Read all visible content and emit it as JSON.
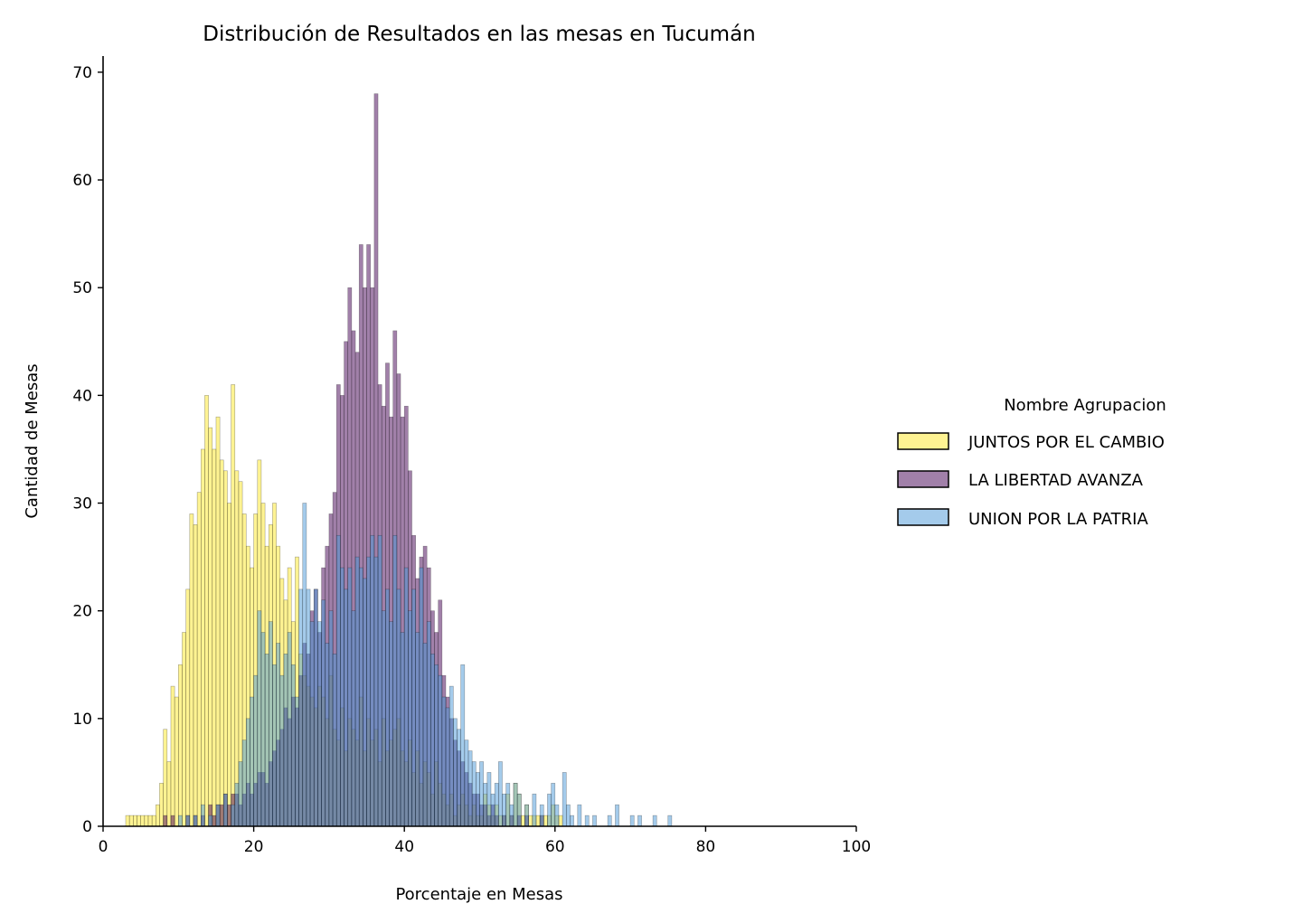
{
  "chart_data": {
    "type": "histogram",
    "title": "Distribución de Resultados en las mesas en Tucumán",
    "xlabel": "Porcentaje en Mesas",
    "ylabel": "Cantidad de Mesas",
    "xlim": [
      0,
      100
    ],
    "ylim": [
      0,
      71.5
    ],
    "xticks": [
      "0",
      "20",
      "40",
      "60",
      "80",
      "100"
    ],
    "yticks": [
      "0",
      "10",
      "20",
      "30",
      "40",
      "50",
      "60",
      "70"
    ],
    "grid": false,
    "legend": {
      "title": "Nombre Agrupacion",
      "position": "center-right"
    },
    "bin_width": 0.5,
    "series": [
      {
        "name": "JUNTOS POR EL CAMBIO",
        "color": "#fde725",
        "counts": [
          [
            3,
            1
          ],
          [
            3.5,
            1
          ],
          [
            4,
            1
          ],
          [
            4.5,
            1
          ],
          [
            5,
            1
          ],
          [
            5.5,
            1
          ],
          [
            6,
            1
          ],
          [
            6.5,
            1
          ],
          [
            7,
            2
          ],
          [
            7.5,
            4
          ],
          [
            8,
            9
          ],
          [
            8.5,
            6
          ],
          [
            9,
            13
          ],
          [
            9.5,
            12
          ],
          [
            10,
            15
          ],
          [
            10.5,
            18
          ],
          [
            11,
            22
          ],
          [
            11.5,
            29
          ],
          [
            12,
            28
          ],
          [
            12.5,
            31
          ],
          [
            13,
            35
          ],
          [
            13.5,
            40
          ],
          [
            14,
            37
          ],
          [
            14.5,
            35
          ],
          [
            15,
            38
          ],
          [
            15.5,
            34
          ],
          [
            16,
            33
          ],
          [
            16.5,
            30
          ],
          [
            17,
            41
          ],
          [
            17.5,
            33
          ],
          [
            18,
            32
          ],
          [
            18.5,
            29
          ],
          [
            19,
            26
          ],
          [
            19.5,
            24
          ],
          [
            20,
            29
          ],
          [
            20.5,
            34
          ],
          [
            21,
            30
          ],
          [
            21.5,
            26
          ],
          [
            22,
            28
          ],
          [
            22.5,
            30
          ],
          [
            23,
            26
          ],
          [
            23.5,
            23
          ],
          [
            24,
            21
          ],
          [
            24.5,
            24
          ],
          [
            25,
            19
          ],
          [
            25.5,
            25
          ],
          [
            26,
            16
          ],
          [
            26.5,
            14
          ],
          [
            27,
            13
          ],
          [
            27.5,
            12
          ],
          [
            28,
            11
          ],
          [
            28.5,
            13
          ],
          [
            29,
            12
          ],
          [
            29.5,
            10
          ],
          [
            30,
            14
          ],
          [
            30.5,
            9
          ],
          [
            31,
            8
          ],
          [
            31.5,
            11
          ],
          [
            32,
            7
          ],
          [
            32.5,
            10
          ],
          [
            33,
            9
          ],
          [
            33.5,
            8
          ],
          [
            34,
            12
          ],
          [
            34.5,
            7
          ],
          [
            35,
            10
          ],
          [
            35.5,
            8
          ],
          [
            36,
            9
          ],
          [
            36.5,
            6
          ],
          [
            37,
            10
          ],
          [
            37.5,
            7
          ],
          [
            38,
            8
          ],
          [
            38.5,
            9
          ],
          [
            39,
            10
          ],
          [
            39.5,
            7
          ],
          [
            40,
            6
          ],
          [
            40.5,
            8
          ],
          [
            41,
            5
          ],
          [
            41.5,
            7
          ],
          [
            42,
            4
          ],
          [
            42.5,
            6
          ],
          [
            43,
            5
          ],
          [
            43.5,
            3
          ],
          [
            44,
            6
          ],
          [
            44.5,
            4
          ],
          [
            45,
            3
          ],
          [
            45.5,
            2
          ],
          [
            46,
            3
          ],
          [
            46.5,
            1
          ],
          [
            47,
            2
          ],
          [
            47.5,
            3
          ],
          [
            48,
            2
          ],
          [
            48.5,
            1
          ],
          [
            49,
            2
          ],
          [
            49.5,
            1
          ],
          [
            50,
            1
          ],
          [
            50.5,
            3
          ],
          [
            51,
            2
          ],
          [
            51.5,
            1
          ],
          [
            52,
            2
          ],
          [
            52.5,
            1
          ],
          [
            53,
            1
          ],
          [
            53.5,
            3
          ],
          [
            54,
            1
          ],
          [
            54.5,
            4
          ],
          [
            55,
            3
          ],
          [
            55.5,
            1
          ],
          [
            56,
            2
          ],
          [
            56.5,
            1
          ],
          [
            57,
            1
          ],
          [
            57.5,
            1
          ],
          [
            58,
            1
          ],
          [
            58.5,
            1
          ],
          [
            59,
            1
          ],
          [
            59.5,
            2
          ],
          [
            60,
            1
          ],
          [
            60.5,
            1
          ]
        ]
      },
      {
        "name": "LA LIBERTAD AVANZA",
        "color": "#440154",
        "counts": [
          [
            8,
            1
          ],
          [
            9,
            1
          ],
          [
            11,
            1
          ],
          [
            12,
            1
          ],
          [
            13,
            1
          ],
          [
            14,
            2
          ],
          [
            14.5,
            1
          ],
          [
            15,
            2
          ],
          [
            15.5,
            2
          ],
          [
            16,
            3
          ],
          [
            16.5,
            2
          ],
          [
            17,
            3
          ],
          [
            17.5,
            3
          ],
          [
            18,
            2
          ],
          [
            18.5,
            3
          ],
          [
            19,
            4
          ],
          [
            19.5,
            3
          ],
          [
            20,
            4
          ],
          [
            20.5,
            5
          ],
          [
            21,
            5
          ],
          [
            21.5,
            4
          ],
          [
            22,
            6
          ],
          [
            22.5,
            7
          ],
          [
            23,
            8
          ],
          [
            23.5,
            9
          ],
          [
            24,
            11
          ],
          [
            24.5,
            10
          ],
          [
            25,
            12
          ],
          [
            25.5,
            11
          ],
          [
            26,
            14
          ],
          [
            26.5,
            17
          ],
          [
            27,
            16
          ],
          [
            27.5,
            20
          ],
          [
            28,
            22
          ],
          [
            28.5,
            18
          ],
          [
            29,
            24
          ],
          [
            29.5,
            26
          ],
          [
            30,
            29
          ],
          [
            30.5,
            31
          ],
          [
            31,
            41
          ],
          [
            31.5,
            40
          ],
          [
            32,
            45
          ],
          [
            32.5,
            50
          ],
          [
            33,
            46
          ],
          [
            33.5,
            44
          ],
          [
            34,
            54
          ],
          [
            34.5,
            50
          ],
          [
            35,
            54
          ],
          [
            35.5,
            50
          ],
          [
            36,
            68
          ],
          [
            36.5,
            41
          ],
          [
            37,
            39
          ],
          [
            37.5,
            43
          ],
          [
            38,
            38
          ],
          [
            38.5,
            46
          ],
          [
            39,
            42
          ],
          [
            39.5,
            38
          ],
          [
            40,
            39
          ],
          [
            40.5,
            33
          ],
          [
            41,
            27
          ],
          [
            41.5,
            23
          ],
          [
            42,
            25
          ],
          [
            42.5,
            26
          ],
          [
            43,
            24
          ],
          [
            43.5,
            20
          ],
          [
            44,
            18
          ],
          [
            44.5,
            21
          ],
          [
            45,
            14
          ],
          [
            45.5,
            12
          ],
          [
            46,
            10
          ],
          [
            46.5,
            8
          ],
          [
            47,
            7
          ],
          [
            47.5,
            6
          ],
          [
            48,
            5
          ],
          [
            48.5,
            4
          ],
          [
            49,
            3
          ],
          [
            49.5,
            3
          ],
          [
            50,
            2
          ],
          [
            50.5,
            2
          ],
          [
            51,
            1
          ],
          [
            51.5,
            2
          ],
          [
            52,
            1
          ],
          [
            53,
            1
          ],
          [
            54,
            1
          ],
          [
            55,
            1
          ],
          [
            56,
            1
          ],
          [
            58,
            1
          ]
        ]
      },
      {
        "name": "UNION POR LA PATRIA",
        "color": "#4a98d8",
        "counts": [
          [
            10,
            1
          ],
          [
            11,
            1
          ],
          [
            12,
            1
          ],
          [
            13,
            2
          ],
          [
            14,
            1
          ],
          [
            15,
            2
          ],
          [
            16,
            3
          ],
          [
            17,
            2
          ],
          [
            17.5,
            4
          ],
          [
            18,
            6
          ],
          [
            18.5,
            8
          ],
          [
            19,
            10
          ],
          [
            19.5,
            12
          ],
          [
            20,
            14
          ],
          [
            20.5,
            20
          ],
          [
            21,
            18
          ],
          [
            21.5,
            16
          ],
          [
            22,
            19
          ],
          [
            22.5,
            15
          ],
          [
            23,
            17
          ],
          [
            23.5,
            14
          ],
          [
            24,
            16
          ],
          [
            24.5,
            18
          ],
          [
            25,
            15
          ],
          [
            25.5,
            12
          ],
          [
            26,
            22
          ],
          [
            26.5,
            30
          ],
          [
            27,
            22
          ],
          [
            27.5,
            19
          ],
          [
            28,
            22
          ],
          [
            28.5,
            19
          ],
          [
            29,
            21
          ],
          [
            29.5,
            17
          ],
          [
            30,
            20
          ],
          [
            30.5,
            16
          ],
          [
            31,
            27
          ],
          [
            31.5,
            24
          ],
          [
            32,
            22
          ],
          [
            32.5,
            24
          ],
          [
            33,
            20
          ],
          [
            33.5,
            25
          ],
          [
            34,
            24
          ],
          [
            34.5,
            23
          ],
          [
            35,
            25
          ],
          [
            35.5,
            27
          ],
          [
            36,
            25
          ],
          [
            36.5,
            27
          ],
          [
            37,
            20
          ],
          [
            37.5,
            22
          ],
          [
            38,
            19
          ],
          [
            38.5,
            27
          ],
          [
            39,
            22
          ],
          [
            39.5,
            18
          ],
          [
            40,
            24
          ],
          [
            40.5,
            20
          ],
          [
            41,
            22
          ],
          [
            41.5,
            18
          ],
          [
            42,
            24
          ],
          [
            42.5,
            17
          ],
          [
            43,
            19
          ],
          [
            43.5,
            16
          ],
          [
            44,
            15
          ],
          [
            44.5,
            14
          ],
          [
            45,
            12
          ],
          [
            45.5,
            11
          ],
          [
            46,
            13
          ],
          [
            46.5,
            10
          ],
          [
            47,
            9
          ],
          [
            47.5,
            15
          ],
          [
            48,
            8
          ],
          [
            48.5,
            7
          ],
          [
            49,
            6
          ],
          [
            49.5,
            5
          ],
          [
            50,
            6
          ],
          [
            50.5,
            4
          ],
          [
            51,
            5
          ],
          [
            51.5,
            3
          ],
          [
            52,
            4
          ],
          [
            52.5,
            6
          ],
          [
            53,
            3
          ],
          [
            53.5,
            4
          ],
          [
            54,
            2
          ],
          [
            54.5,
            4
          ],
          [
            55,
            3
          ],
          [
            56,
            2
          ],
          [
            57,
            3
          ],
          [
            58,
            2
          ],
          [
            59,
            3
          ],
          [
            59.5,
            4
          ],
          [
            60,
            2
          ],
          [
            61,
            5
          ],
          [
            61.5,
            2
          ],
          [
            62,
            1
          ],
          [
            63,
            2
          ],
          [
            64,
            1
          ],
          [
            65,
            1
          ],
          [
            67,
            1
          ],
          [
            68,
            2
          ],
          [
            70,
            1
          ],
          [
            71,
            1
          ],
          [
            73,
            1
          ],
          [
            75,
            1
          ]
        ]
      }
    ]
  }
}
